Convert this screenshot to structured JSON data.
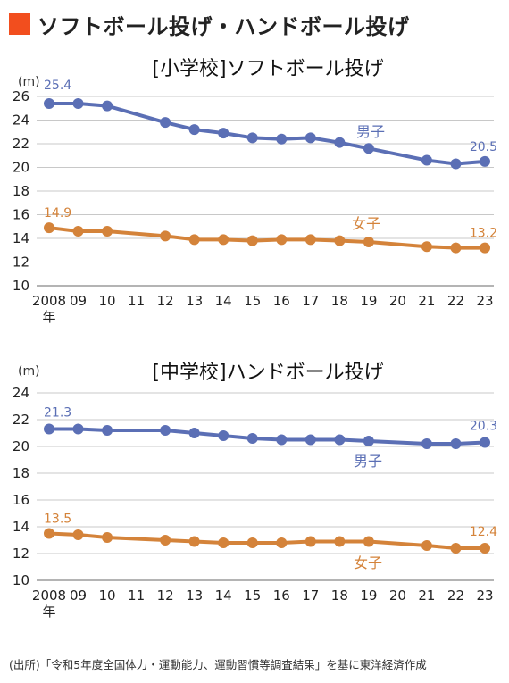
{
  "header": {
    "title": "ソフトボール投げ・ハンドボール投げ",
    "accent_color": "#f24e1e"
  },
  "chart_data": [
    {
      "type": "line",
      "title": "[小学校]ソフトボール投げ",
      "unit": "(m)",
      "x": [
        2008,
        2009,
        2010,
        2011,
        2012,
        2013,
        2014,
        2015,
        2016,
        2017,
        2018,
        2019,
        2020,
        2021,
        2022,
        2023
      ],
      "tick_labels": [
        "2008",
        "09",
        "10",
        "11",
        "12",
        "13",
        "14",
        "15",
        "16",
        "17",
        "18",
        "19",
        "20",
        "21",
        "22",
        "23"
      ],
      "first_tick_suffix": "年",
      "ylim": [
        10,
        26
      ],
      "yticks": [
        10,
        12,
        14,
        16,
        18,
        20,
        22,
        24,
        26
      ],
      "grid": true,
      "series": [
        {
          "name": "男子",
          "color": "#5b6fb5",
          "values": [
            25.4,
            25.4,
            25.2,
            null,
            23.8,
            23.2,
            22.9,
            22.5,
            22.4,
            22.5,
            22.1,
            21.6,
            null,
            20.6,
            20.3,
            20.5
          ],
          "start_label": "25.4",
          "end_label": "20.5"
        },
        {
          "name": "女子",
          "color": "#d4833a",
          "values": [
            14.9,
            14.6,
            14.6,
            null,
            14.2,
            13.9,
            13.9,
            13.8,
            13.9,
            13.9,
            13.8,
            13.7,
            null,
            13.3,
            13.2,
            13.2
          ],
          "start_label": "14.9",
          "end_label": "13.2"
        }
      ]
    },
    {
      "type": "line",
      "title": "[中学校]ハンドボール投げ",
      "unit": "(m)",
      "x": [
        2008,
        2009,
        2010,
        2011,
        2012,
        2013,
        2014,
        2015,
        2016,
        2017,
        2018,
        2019,
        2020,
        2021,
        2022,
        2023
      ],
      "tick_labels": [
        "2008",
        "09",
        "10",
        "11",
        "12",
        "13",
        "14",
        "15",
        "16",
        "17",
        "18",
        "19",
        "20",
        "21",
        "22",
        "23"
      ],
      "first_tick_suffix": "年",
      "ylim": [
        10,
        24
      ],
      "yticks": [
        10,
        12,
        14,
        16,
        18,
        20,
        22,
        24
      ],
      "grid": true,
      "series": [
        {
          "name": "男子",
          "color": "#5b6fb5",
          "values": [
            21.3,
            21.3,
            21.2,
            null,
            21.2,
            21.0,
            20.8,
            20.6,
            20.5,
            20.5,
            20.5,
            20.4,
            null,
            20.2,
            20.2,
            20.3
          ],
          "start_label": "21.3",
          "end_label": "20.3"
        },
        {
          "name": "女子",
          "color": "#d4833a",
          "values": [
            13.5,
            13.4,
            13.2,
            null,
            13.0,
            12.9,
            12.8,
            12.8,
            12.8,
            12.9,
            12.9,
            12.9,
            null,
            12.6,
            12.4,
            12.4
          ],
          "start_label": "13.5",
          "end_label": "12.4"
        }
      ]
    }
  ],
  "source": "(出所)「令和5年度全国体力・運動能力、運動習慣等調査結果」を基に東洋経済作成"
}
